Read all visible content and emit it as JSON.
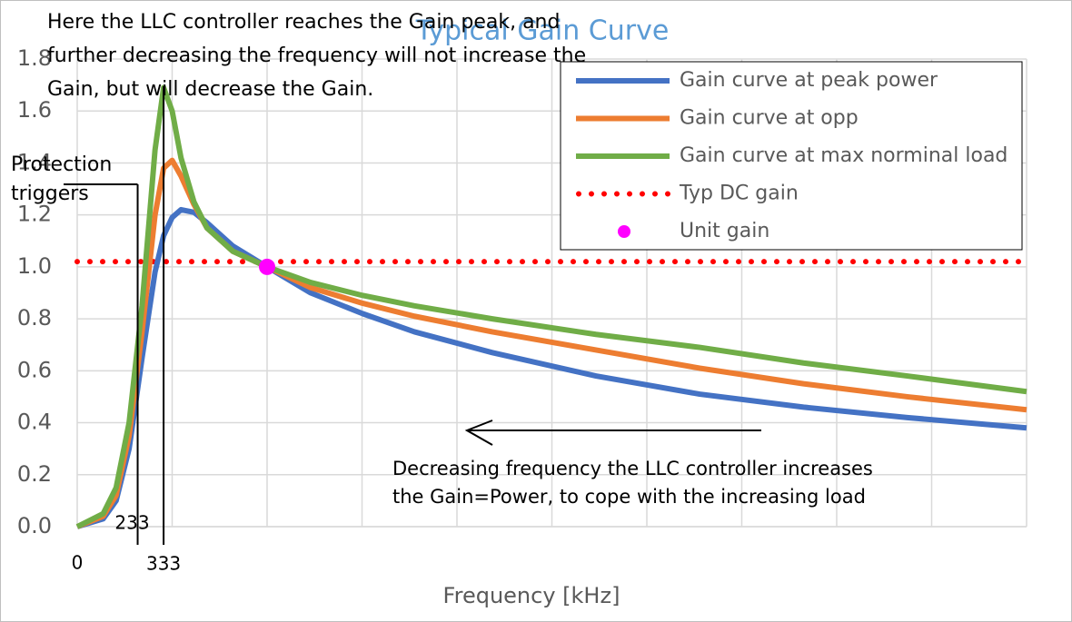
{
  "chart_data": {
    "type": "line",
    "title": "Typical Gain Curve",
    "x_label": "Frequency [kHz]",
    "x": [
      0,
      100,
      150,
      200,
      250,
      300,
      333,
      366,
      400,
      450,
      500,
      600,
      732,
      900,
      1100,
      1300,
      1600,
      2000,
      2400,
      2800,
      3200,
      3660
    ],
    "series": [
      {
        "name": "Gain curve at peak power",
        "color": "#4472c4",
        "values": [
          0,
          0.03,
          0.1,
          0.3,
          0.65,
          0.98,
          1.12,
          1.19,
          1.22,
          1.21,
          1.17,
          1.08,
          1.0,
          0.9,
          0.82,
          0.75,
          0.67,
          0.58,
          0.51,
          0.46,
          0.42,
          0.38
        ]
      },
      {
        "name": "Gain curve at opp",
        "color": "#ed7d31",
        "values": [
          0,
          0.04,
          0.12,
          0.35,
          0.75,
          1.2,
          1.38,
          1.41,
          1.35,
          1.24,
          1.15,
          1.06,
          1.0,
          0.92,
          0.86,
          0.81,
          0.75,
          0.68,
          0.61,
          0.55,
          0.5,
          0.45
        ]
      },
      {
        "name": "Gain curve at max norminal load",
        "color": "#70ad47",
        "values": [
          0,
          0.05,
          0.15,
          0.4,
          0.85,
          1.45,
          1.69,
          1.6,
          1.42,
          1.25,
          1.15,
          1.06,
          1.0,
          0.94,
          0.89,
          0.85,
          0.8,
          0.74,
          0.69,
          0.63,
          0.58,
          0.52
        ]
      },
      {
        "name": "Typ DC gain",
        "color": "#ff0000",
        "style": "dotted",
        "values": [
          1.02,
          1.02,
          1.02,
          1.02,
          1.02,
          1.02,
          1.02,
          1.02,
          1.02,
          1.02,
          1.02,
          1.02,
          1.02,
          1.02,
          1.02,
          1.02,
          1.02,
          1.02,
          1.02,
          1.02,
          1.02,
          1.02
        ]
      }
    ],
    "points": [
      {
        "name": "Unit gain",
        "color": "#ff00ff",
        "x": 732,
        "y": 1.0
      }
    ],
    "xlim": [
      0,
      3660
    ],
    "xticks": [
      0,
      333
    ],
    "xgrid": [
      0,
      366,
      732,
      1098,
      1464,
      1830,
      2196,
      2562,
      2928,
      3294,
      3660
    ],
    "ylim": [
      0,
      1.8
    ],
    "yticks": [
      {
        "value": 0,
        "label": "0.0"
      },
      0.2,
      0.4,
      0.6,
      0.8,
      {
        "value": 1,
        "label": "1.0"
      },
      1.2,
      1.4,
      1.6,
      1.8
    ],
    "grid": true,
    "legend": "top-right",
    "markers": [
      {
        "x": 233,
        "label": "233"
      },
      {
        "x": 333
      }
    ],
    "annotations": [
      {
        "lines": [
          "Here the LLC controller reaches the Gain peak, and",
          "further decreasing the frequency will not increase the",
          "Gain, but will decrease the Gain."
        ]
      },
      {
        "lines": [
          "Protection",
          "triggers"
        ]
      },
      {
        "lines": [
          "Decreasing frequency the LLC controller increases",
          "the Gain=Power, to cope with the increasing load"
        ]
      }
    ]
  }
}
